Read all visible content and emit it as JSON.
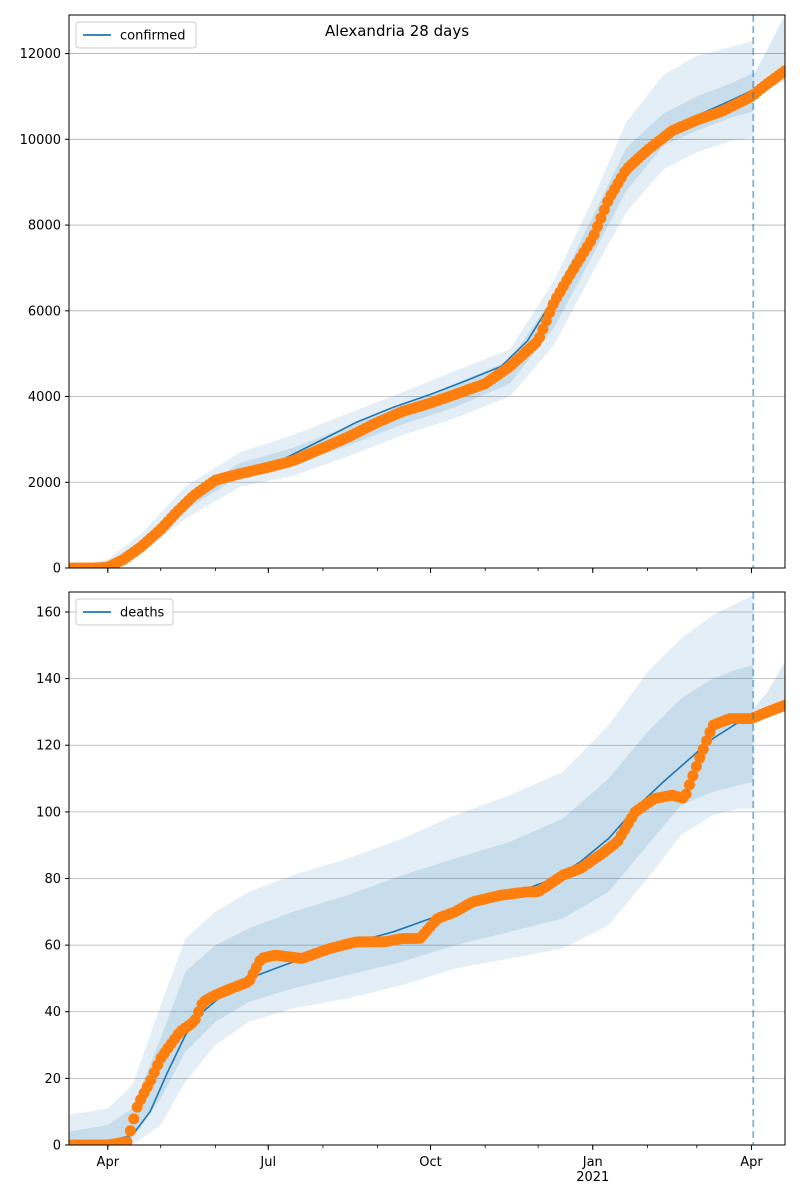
{
  "chart_data": [
    {
      "type": "line",
      "title": "Alexandria 28 days",
      "xlabel": "",
      "ylabel": "",
      "ylim": [
        0,
        12900
      ],
      "xlim": [
        "2020-03-10",
        "2021-04-20"
      ],
      "grid": "horizontal",
      "legend_position": "top-left",
      "vline_date": "2021-04-02",
      "y_ticks": [
        0,
        2000,
        4000,
        6000,
        8000,
        10000,
        12000
      ],
      "y_tick_labels": [
        "0",
        "2000",
        "4000",
        "6000",
        "8000",
        "10000",
        "12000"
      ],
      "x_tick_labels": [
        "Apr",
        "Jul",
        "Oct",
        "Jan\n2021",
        "Apr"
      ],
      "x_tick_dates": [
        "2020-04-01",
        "2020-07-01",
        "2020-10-01",
        "2021-01-01",
        "2021-04-01"
      ],
      "series": [
        {
          "name": "confirmed",
          "kind": "model",
          "color": "#1f77b4",
          "x": [
            "2020-03-10",
            "2020-03-30",
            "2020-04-10",
            "2020-04-20",
            "2020-05-01",
            "2020-05-15",
            "2020-06-01",
            "2020-06-20",
            "2020-07-10",
            "2020-08-01",
            "2020-08-20",
            "2020-09-10",
            "2020-10-01",
            "2020-10-20",
            "2020-11-10",
            "2020-11-25",
            "2020-12-10",
            "2020-12-25",
            "2021-01-05",
            "2021-01-20",
            "2021-02-01",
            "2021-02-15",
            "2021-03-01",
            "2021-03-20",
            "2021-04-02"
          ],
          "values": [
            0,
            50,
            250,
            550,
            950,
            1500,
            2050,
            2350,
            2550,
            3000,
            3400,
            3750,
            4050,
            4350,
            4700,
            5300,
            6300,
            7300,
            8100,
            9200,
            9750,
            10250,
            10550,
            10900,
            11150
          ]
        },
        {
          "name": "",
          "kind": "observed",
          "color": "#ff7f0e",
          "x": [
            "2020-03-10",
            "2020-03-25",
            "2020-04-01",
            "2020-04-10",
            "2020-04-20",
            "2020-05-01",
            "2020-05-10",
            "2020-05-20",
            "2020-06-01",
            "2020-06-15",
            "2020-07-01",
            "2020-07-15",
            "2020-08-01",
            "2020-08-15",
            "2020-09-01",
            "2020-09-15",
            "2020-10-01",
            "2020-10-15",
            "2020-11-01",
            "2020-11-15",
            "2020-12-01",
            "2020-12-10",
            "2020-12-20",
            "2021-01-01",
            "2021-01-10",
            "2021-01-20",
            "2021-02-01",
            "2021-02-15",
            "2021-03-01",
            "2021-03-15",
            "2021-04-01",
            "2021-04-10",
            "2021-04-20"
          ],
          "values": [
            0,
            0,
            20,
            200,
            500,
            900,
            1300,
            1700,
            2050,
            2200,
            2350,
            2500,
            2800,
            3050,
            3400,
            3650,
            3850,
            4050,
            4300,
            4700,
            5300,
            6200,
            6900,
            7700,
            8600,
            9300,
            9750,
            10200,
            10450,
            10650,
            11000,
            11300,
            11600
          ]
        }
      ],
      "bands": {
        "color": "#1f77b4",
        "x": [
          "2020-03-10",
          "2020-04-01",
          "2020-04-20",
          "2020-05-15",
          "2020-06-15",
          "2020-07-15",
          "2020-08-15",
          "2020-09-15",
          "2020-10-15",
          "2020-11-15",
          "2020-12-10",
          "2021-01-01",
          "2021-01-20",
          "2021-02-10",
          "2021-03-01",
          "2021-03-20",
          "2021-04-02"
        ],
        "upper_outer": [
          0,
          200,
          800,
          1900,
          2700,
          3100,
          3600,
          4100,
          4600,
          5100,
          6700,
          8600,
          10400,
          11500,
          11950,
          12150,
          12300
        ],
        "lower_outer": [
          0,
          10,
          350,
          1150,
          1900,
          2150,
          2600,
          3100,
          3500,
          4000,
          5200,
          6900,
          8300,
          9300,
          9700,
          9950,
          10050
        ],
        "upper_inner": [
          0,
          120,
          650,
          1650,
          2450,
          2800,
          3300,
          3800,
          4300,
          4850,
          6350,
          8200,
          9800,
          10600,
          11000,
          11300,
          11550
        ],
        "lower_inner": [
          0,
          30,
          450,
          1350,
          2150,
          2400,
          2850,
          3350,
          3750,
          4300,
          5600,
          7300,
          8800,
          9850,
          10200,
          10500,
          10650
        ],
        "forecast_x": [
          "2021-04-02",
          "2021-04-10",
          "2021-04-20"
        ],
        "forecast_upper": [
          11500,
          12100,
          12900
        ],
        "forecast_lower": [
          11050,
          11200,
          11350
        ]
      }
    },
    {
      "type": "line",
      "title": "",
      "xlabel": "",
      "ylabel": "",
      "ylim": [
        0,
        166
      ],
      "xlim": [
        "2020-03-10",
        "2021-04-20"
      ],
      "grid": "horizontal",
      "legend_position": "top-left",
      "vline_date": "2021-04-02",
      "y_ticks": [
        0,
        20,
        40,
        60,
        80,
        100,
        120,
        140,
        160
      ],
      "y_tick_labels": [
        "0",
        "20",
        "40",
        "60",
        "80",
        "100",
        "120",
        "140",
        "160"
      ],
      "x_tick_labels": [
        "Apr",
        "Jul",
        "Oct",
        "Jan\n2021",
        "Apr"
      ],
      "x_tick_dates": [
        "2020-04-01",
        "2020-07-01",
        "2020-10-01",
        "2021-01-01",
        "2021-04-01"
      ],
      "series": [
        {
          "name": "deaths",
          "kind": "model",
          "color": "#1f77b4",
          "x": [
            "2020-03-10",
            "2020-04-01",
            "2020-04-15",
            "2020-04-25",
            "2020-05-05",
            "2020-05-15",
            "2020-05-25",
            "2020-06-05",
            "2020-06-20",
            "2020-07-10",
            "2020-08-01",
            "2020-08-20",
            "2020-09-10",
            "2020-10-01",
            "2020-10-20",
            "2020-11-10",
            "2020-11-25",
            "2020-12-10",
            "2020-12-25",
            "2021-01-10",
            "2021-01-25",
            "2021-02-10",
            "2021-02-25",
            "2021-03-10",
            "2021-03-25",
            "2021-04-02"
          ],
          "values": [
            0,
            1,
            3,
            10,
            22,
            33,
            40,
            45,
            50,
            54,
            58,
            61,
            64,
            68,
            71,
            74,
            77,
            80,
            85,
            92,
            101,
            109,
            116,
            122,
            127,
            129
          ]
        },
        {
          "name": "",
          "kind": "observed",
          "color": "#ff7f0e",
          "x": [
            "2020-03-10",
            "2020-04-01",
            "2020-04-12",
            "2020-04-18",
            "2020-04-25",
            "2020-05-01",
            "2020-05-05",
            "2020-05-12",
            "2020-05-20",
            "2020-05-25",
            "2020-06-01",
            "2020-06-10",
            "2020-06-20",
            "2020-06-27",
            "2020-07-05",
            "2020-07-20",
            "2020-08-05",
            "2020-08-20",
            "2020-09-05",
            "2020-09-15",
            "2020-09-25",
            "2020-10-05",
            "2020-10-15",
            "2020-10-25",
            "2020-11-10",
            "2020-11-25",
            "2020-12-01",
            "2020-12-15",
            "2020-12-25",
            "2021-01-05",
            "2021-01-15",
            "2021-01-25",
            "2021-02-05",
            "2021-02-15",
            "2021-02-22",
            "2021-03-01",
            "2021-03-10",
            "2021-03-20",
            "2021-04-01",
            "2021-04-10",
            "2021-04-20"
          ],
          "values": [
            0,
            0,
            1,
            12,
            19,
            26,
            29,
            34,
            37,
            43,
            45,
            47,
            49,
            56,
            57,
            56,
            59,
            61,
            61,
            62,
            62,
            68,
            70,
            73,
            75,
            76,
            76,
            81,
            83,
            87,
            91,
            100,
            104,
            105,
            104,
            114,
            126,
            128,
            128,
            130,
            132
          ]
        }
      ],
      "bands": {
        "color": "#1f77b4",
        "x": [
          "2020-03-10",
          "2020-04-01",
          "2020-04-15",
          "2020-05-01",
          "2020-05-15",
          "2020-06-01",
          "2020-06-20",
          "2020-07-15",
          "2020-08-15",
          "2020-09-15",
          "2020-10-15",
          "2020-11-15",
          "2020-12-15",
          "2021-01-10",
          "2021-02-01",
          "2021-02-20",
          "2021-03-10",
          "2021-03-25",
          "2021-04-02"
        ],
        "upper_outer": [
          9,
          11,
          18,
          42,
          62,
          70,
          76,
          81,
          86,
          92,
          99,
          105,
          112,
          126,
          142,
          152,
          159,
          163,
          165
        ],
        "lower_outer": [
          0,
          0,
          0,
          6,
          19,
          30,
          37,
          41,
          44,
          48,
          53,
          56,
          59,
          66,
          80,
          93,
          99,
          101,
          101
        ],
        "upper_inner": [
          4,
          6,
          11,
          32,
          52,
          60,
          65,
          70,
          75,
          81,
          86,
          91,
          98,
          110,
          124,
          134,
          140,
          143,
          144
        ],
        "lower_inner": [
          0,
          0,
          2,
          14,
          28,
          37,
          43,
          47,
          51,
          55,
          60,
          64,
          68,
          76,
          90,
          102,
          106,
          108,
          109
        ],
        "forecast_x": [
          "2021-04-02",
          "2021-04-10",
          "2021-04-20"
        ],
        "forecast_upper": [
          131,
          136,
          145
        ],
        "forecast_lower": [
          128,
          129,
          130
        ]
      }
    }
  ]
}
